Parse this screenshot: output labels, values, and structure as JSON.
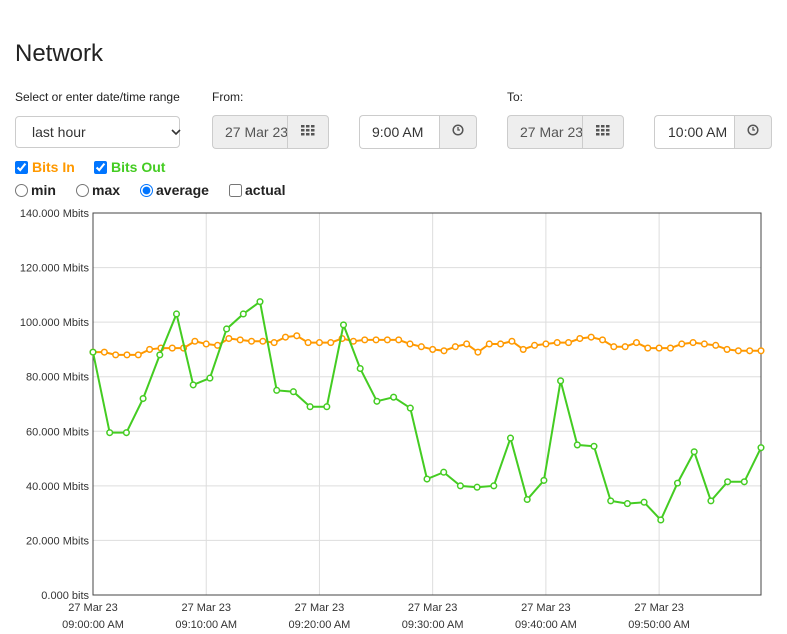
{
  "page": {
    "title": "Network"
  },
  "range": {
    "label": "Select or enter date/time range",
    "selected": "last hour"
  },
  "from": {
    "label": "From:",
    "date": "27 Mar 23",
    "time": "9:00 AM"
  },
  "to": {
    "label": "To:",
    "date": "27 Mar 23",
    "time": "10:00 AM"
  },
  "series_toggles": [
    {
      "label": "Bits In",
      "checked": true,
      "color": "#ff9900"
    },
    {
      "label": "Bits Out",
      "checked": true,
      "color": "#44cc22"
    }
  ],
  "aggregation": [
    {
      "label": "min",
      "checked": false,
      "type": "radio"
    },
    {
      "label": "max",
      "checked": false,
      "type": "radio"
    },
    {
      "label": "average",
      "checked": true,
      "type": "radio"
    },
    {
      "label": "actual",
      "checked": false,
      "type": "checkbox"
    }
  ],
  "chart_data": {
    "type": "line",
    "ylim": [
      0,
      140
    ],
    "yticks": [
      "0.000 bits",
      "20.000 Mbits",
      "40.000 Mbits",
      "60.000 Mbits",
      "80.000 Mbits",
      "100.000 Mbits",
      "120.000 Mbits",
      "140.000 Mbits"
    ],
    "ytick_values": [
      0,
      20,
      40,
      60,
      80,
      100,
      120,
      140
    ],
    "xlim_minutes": [
      0,
      59
    ],
    "xticks": [
      {
        "minute": 0,
        "date": "27 Mar 23",
        "time": "09:00:00 AM"
      },
      {
        "minute": 10,
        "date": "27 Mar 23",
        "time": "09:10:00 AM"
      },
      {
        "minute": 20,
        "date": "27 Mar 23",
        "time": "09:20:00 AM"
      },
      {
        "minute": 30,
        "date": "27 Mar 23",
        "time": "09:30:00 AM"
      },
      {
        "minute": 40,
        "date": "27 Mar 23",
        "time": "09:40:00 AM"
      },
      {
        "minute": 50,
        "date": "27 Mar 23",
        "time": "09:50:00 AM"
      }
    ],
    "grid": true,
    "series": [
      {
        "name": "Bits In",
        "color": "#ff9900",
        "values": [
          89,
          89,
          88,
          88,
          88,
          90,
          90.5,
          90.5,
          90.5,
          93,
          92,
          91.5,
          94,
          93.5,
          93,
          93,
          92.5,
          94.5,
          95,
          92.5,
          92.5,
          92.5,
          94,
          93,
          93.5,
          93.5,
          93.5,
          93.5,
          92,
          91,
          90,
          89.5,
          91,
          92,
          89,
          92,
          92,
          93,
          90,
          91.5,
          92,
          92.5,
          92.5,
          94,
          94.5,
          93.5,
          91,
          91,
          92.5,
          90.5,
          90.5,
          90.5,
          92,
          92.5,
          92,
          91.5,
          90,
          89.5,
          89.5,
          89.5
        ]
      },
      {
        "name": "Bits Out",
        "color": "#44cc22",
        "values": [
          89,
          59.5,
          59.5,
          72,
          88,
          103,
          77,
          79.5,
          97.5,
          103,
          107.5,
          75,
          74.5,
          69,
          69,
          99,
          83,
          71,
          72.5,
          68.5,
          42.5,
          45,
          40,
          39.5,
          40,
          57.5,
          35,
          42,
          78.5,
          55,
          54.5,
          34.5,
          33.5,
          34,
          27.5,
          41,
          52.5,
          34.5,
          41.5,
          41.5,
          54
        ]
      }
    ]
  }
}
